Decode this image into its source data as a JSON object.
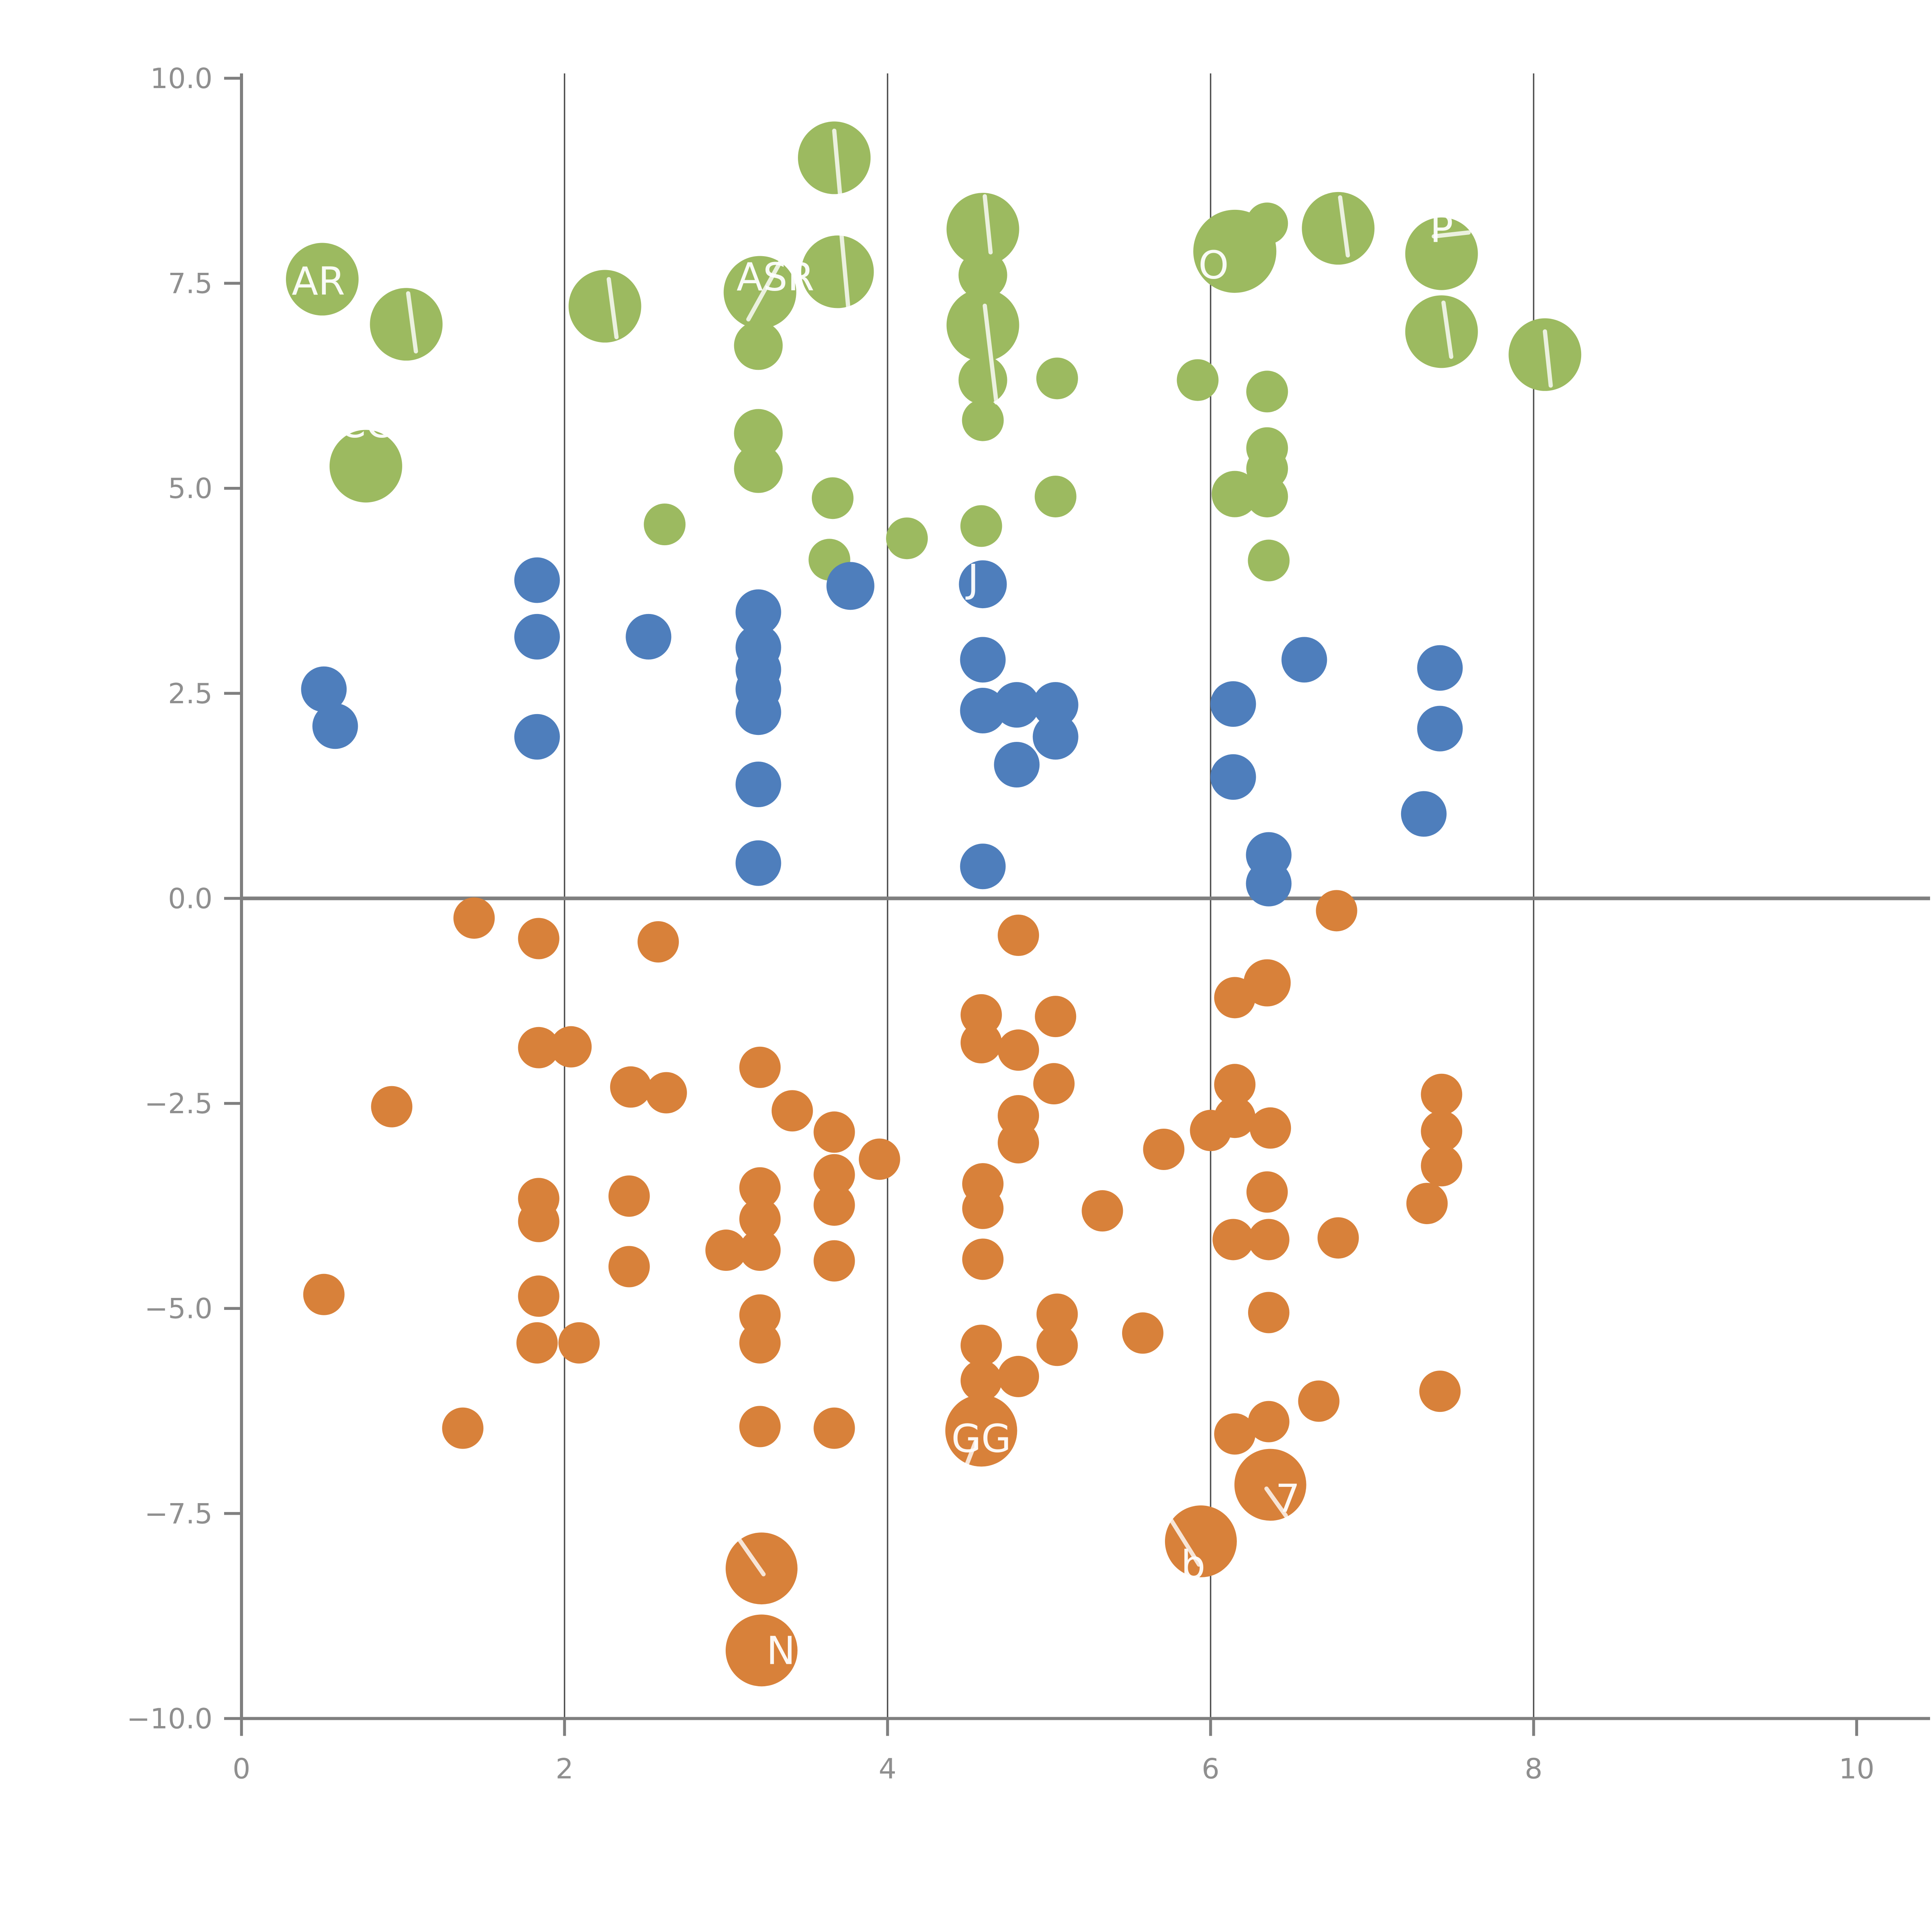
{
  "chart_data": {
    "type": "scatter",
    "title": "",
    "xlabel": "",
    "ylabel": "",
    "xlim": [
      0,
      10
    ],
    "ylim": [
      -10,
      10
    ],
    "grid": "vertical-only",
    "gridlines_x": [
      2,
      4,
      6,
      8
    ],
    "zero_line_y": 0,
    "x_ticks": [
      {
        "value": 0,
        "label": "0"
      },
      {
        "value": 2,
        "label": "2"
      },
      {
        "value": 4,
        "label": "4"
      },
      {
        "value": 6,
        "label": "6"
      },
      {
        "value": 8,
        "label": "8"
      },
      {
        "value": 10,
        "label": "10"
      }
    ],
    "y_ticks": [
      {
        "value": 10,
        "label": "10.0"
      },
      {
        "value": 7.5,
        "label": "7.5"
      },
      {
        "value": 5,
        "label": "5.0"
      },
      {
        "value": 2.5,
        "label": "2.5"
      },
      {
        "value": 0,
        "label": "0.0"
      },
      {
        "value": -2.5,
        "label": "−2.5"
      },
      {
        "value": -5,
        "label": "−5.0"
      },
      {
        "value": -7.5,
        "label": "−7.5"
      },
      {
        "value": -10,
        "label": "−10.0"
      }
    ],
    "point_label_color": "#ffffff",
    "series": [
      {
        "name": "green-cluster",
        "color": "#9CBA60",
        "points": [
          {
            "x": 0.5,
            "y": 7.55,
            "r": 18.8,
            "label": "AR",
            "lx": -2,
            "ly": 1
          },
          {
            "x": 1.02,
            "y": 7.0,
            "r": 18.8,
            "line": [
              1,
              -16,
              5,
              14
            ]
          },
          {
            "x": 0.77,
            "y": 5.27,
            "r": 18.8,
            "label": "CC",
            "lx": 0,
            "ly": -22
          },
          {
            "x": 2.25,
            "y": 7.22,
            "r": 18.8,
            "line": [
              2,
              -14,
              6,
              16
            ]
          },
          {
            "x": 3.67,
            "y": 9.03,
            "r": 18.8,
            "line": [
              0,
              -14,
              4,
              30
            ]
          },
          {
            "x": 3.21,
            "y": 7.39,
            "r": 18.8,
            "label": "ASR",
            "lx": 8,
            "ly": -8,
            "line": [
              14,
              -22,
              -6,
              14
            ]
          },
          {
            "x": 3.2,
            "y": 6.74,
            "r": 12.6
          },
          {
            "x": 3.69,
            "y": 7.64,
            "r": 18.8,
            "line": [
              2,
              -20,
              7,
              34
            ]
          },
          {
            "x": 4.59,
            "y": 8.16,
            "r": 18.8,
            "line": [
              1,
              -17,
              4,
              12
            ]
          },
          {
            "x": 4.59,
            "y": 7.6,
            "r": 12.6
          },
          {
            "x": 4.59,
            "y": 6.99,
            "r": 18.8,
            "line": [
              1,
              -10,
              7,
              40
            ]
          },
          {
            "x": 4.59,
            "y": 6.32,
            "r": 12.6
          },
          {
            "x": 4.59,
            "y": 5.83,
            "r": 10.8
          },
          {
            "x": 5.05,
            "y": 6.34,
            "r": 10.8
          },
          {
            "x": 3.2,
            "y": 5.67,
            "r": 12.6
          },
          {
            "x": 3.2,
            "y": 5.24,
            "r": 12.6
          },
          {
            "x": 3.66,
            "y": 4.88,
            "r": 10.8
          },
          {
            "x": 3.64,
            "y": 4.13,
            "r": 10.8
          },
          {
            "x": 2.62,
            "y": 4.56,
            "r": 10.8
          },
          {
            "x": 4.12,
            "y": 4.39,
            "r": 10.8
          },
          {
            "x": 4.58,
            "y": 4.54,
            "r": 10.8
          },
          {
            "x": 5.04,
            "y": 4.9,
            "r": 10.8
          },
          {
            "x": 6.35,
            "y": 8.23,
            "r": 10.8
          },
          {
            "x": 6.15,
            "y": 7.89,
            "r": 21.5,
            "label": "O",
            "lx": -11,
            "ly": 7
          },
          {
            "x": 6.79,
            "y": 8.17,
            "r": 18.8,
            "line": [
              1,
              -16,
              5,
              14
            ]
          },
          {
            "x": 7.43,
            "y": 7.86,
            "r": 18.8,
            "label": "P",
            "lx": 0,
            "ly": -13,
            "line": [
              -4,
              -9,
              14,
              -11
            ]
          },
          {
            "x": 7.43,
            "y": 6.91,
            "r": 18.8,
            "line": [
              1,
              -15,
              5,
              13
            ]
          },
          {
            "x": 8.07,
            "y": 6.63,
            "r": 18.8,
            "line": [
              0,
              -12,
              3,
              16
            ]
          },
          {
            "x": 5.92,
            "y": 6.32,
            "r": 10.8
          },
          {
            "x": 6.35,
            "y": 6.18,
            "r": 10.8
          },
          {
            "x": 6.35,
            "y": 5.49,
            "r": 10.8
          },
          {
            "x": 6.35,
            "y": 5.24,
            "r": 10.8
          },
          {
            "x": 6.15,
            "y": 4.93,
            "r": 12.0
          },
          {
            "x": 6.35,
            "y": 4.9,
            "r": 10.8
          },
          {
            "x": 6.36,
            "y": 4.12,
            "r": 10.8
          }
        ]
      },
      {
        "name": "blue-cluster",
        "color": "#4E7EBC",
        "points": [
          {
            "x": 0.51,
            "y": 2.55,
            "r": 11.8
          },
          {
            "x": 0.58,
            "y": 2.1,
            "r": 11.8
          },
          {
            "x": 1.83,
            "y": 3.88,
            "r": 11.8
          },
          {
            "x": 1.83,
            "y": 3.19,
            "r": 11.8
          },
          {
            "x": 1.83,
            "y": 1.97,
            "r": 11.8
          },
          {
            "x": 2.52,
            "y": 3.19,
            "r": 11.8
          },
          {
            "x": 3.2,
            "y": 3.49,
            "r": 11.8
          },
          {
            "x": 3.2,
            "y": 3.06,
            "r": 11.8
          },
          {
            "x": 3.2,
            "y": 2.79,
            "r": 11.8
          },
          {
            "x": 3.2,
            "y": 2.55,
            "r": 11.8
          },
          {
            "x": 3.2,
            "y": 2.27,
            "r": 11.8
          },
          {
            "x": 3.2,
            "y": 1.39,
            "r": 11.8
          },
          {
            "x": 3.2,
            "y": 0.43,
            "r": 11.8
          },
          {
            "x": 3.77,
            "y": 3.81,
            "r": 12.4
          },
          {
            "x": 4.59,
            "y": 3.83,
            "r": 12.4,
            "label": "J",
            "lx": -5,
            "ly": -3
          },
          {
            "x": 4.59,
            "y": 2.91,
            "r": 11.8
          },
          {
            "x": 4.59,
            "y": 2.29,
            "r": 11.8
          },
          {
            "x": 4.8,
            "y": 2.36,
            "r": 11.8
          },
          {
            "x": 5.04,
            "y": 2.36,
            "r": 11.8
          },
          {
            "x": 5.04,
            "y": 1.97,
            "r": 11.8
          },
          {
            "x": 4.8,
            "y": 1.63,
            "r": 11.8
          },
          {
            "x": 4.59,
            "y": 0.39,
            "r": 11.8
          },
          {
            "x": 6.14,
            "y": 2.37,
            "r": 11.8
          },
          {
            "x": 6.14,
            "y": 1.48,
            "r": 11.8
          },
          {
            "x": 6.58,
            "y": 2.91,
            "r": 11.8
          },
          {
            "x": 7.42,
            "y": 2.81,
            "r": 11.8
          },
          {
            "x": 7.42,
            "y": 2.07,
            "r": 11.8
          },
          {
            "x": 7.32,
            "y": 1.03,
            "r": 11.8
          },
          {
            "x": 6.36,
            "y": 0.53,
            "r": 11.8
          },
          {
            "x": 6.36,
            "y": 0.18,
            "r": 11.8
          }
        ]
      },
      {
        "name": "orange-cluster",
        "color": "#D8813A",
        "points": [
          {
            "x": 1.44,
            "y": -0.24,
            "r": 10.7
          },
          {
            "x": 1.84,
            "y": -0.49,
            "r": 10.7
          },
          {
            "x": 2.58,
            "y": -0.53,
            "r": 10.7
          },
          {
            "x": 4.81,
            "y": -0.45,
            "r": 10.7
          },
          {
            "x": 6.78,
            "y": -0.15,
            "r": 10.7
          },
          {
            "x": 0.93,
            "y": -2.54,
            "r": 10.7
          },
          {
            "x": 1.84,
            "y": -1.82,
            "r": 10.7
          },
          {
            "x": 2.04,
            "y": -1.81,
            "r": 10.7
          },
          {
            "x": 2.41,
            "y": -2.3,
            "r": 10.7
          },
          {
            "x": 2.63,
            "y": -2.37,
            "r": 10.7
          },
          {
            "x": 3.21,
            "y": -2.06,
            "r": 10.7
          },
          {
            "x": 3.41,
            "y": -2.59,
            "r": 10.7
          },
          {
            "x": 3.67,
            "y": -2.85,
            "r": 10.7
          },
          {
            "x": 3.95,
            "y": -3.18,
            "r": 10.7
          },
          {
            "x": 3.67,
            "y": -3.37,
            "r": 10.7
          },
          {
            "x": 3.67,
            "y": -3.74,
            "r": 10.7
          },
          {
            "x": 1.84,
            "y": -3.66,
            "r": 10.7
          },
          {
            "x": 1.84,
            "y": -3.94,
            "r": 10.7
          },
          {
            "x": 2.4,
            "y": -3.63,
            "r": 10.7
          },
          {
            "x": 2.4,
            "y": -4.49,
            "r": 10.7
          },
          {
            "x": 0.51,
            "y": -4.83,
            "r": 10.7
          },
          {
            "x": 1.84,
            "y": -4.85,
            "r": 10.7
          },
          {
            "x": 1.83,
            "y": -5.42,
            "r": 10.7
          },
          {
            "x": 2.09,
            "y": -5.42,
            "r": 10.7
          },
          {
            "x": 1.37,
            "y": -6.46,
            "r": 10.7
          },
          {
            "x": 3.21,
            "y": -3.53,
            "r": 10.7
          },
          {
            "x": 3.21,
            "y": -3.91,
            "r": 10.7
          },
          {
            "x": 3.21,
            "y": -4.29,
            "r": 10.7
          },
          {
            "x": 3.0,
            "y": -4.29,
            "r": 10.7
          },
          {
            "x": 3.67,
            "y": -4.42,
            "r": 10.7
          },
          {
            "x": 4.58,
            "y": -1.42,
            "r": 10.7
          },
          {
            "x": 4.58,
            "y": -1.76,
            "r": 10.7
          },
          {
            "x": 4.81,
            "y": -1.85,
            "r": 10.7
          },
          {
            "x": 5.04,
            "y": -1.44,
            "r": 10.7
          },
          {
            "x": 5.03,
            "y": -2.26,
            "r": 10.7
          },
          {
            "x": 4.81,
            "y": -2.65,
            "r": 10.7
          },
          {
            "x": 4.81,
            "y": -2.98,
            "r": 10.7
          },
          {
            "x": 4.59,
            "y": -3.48,
            "r": 10.7
          },
          {
            "x": 4.59,
            "y": -3.78,
            "r": 10.7
          },
          {
            "x": 4.59,
            "y": -4.4,
            "r": 10.7
          },
          {
            "x": 5.33,
            "y": -3.81,
            "r": 10.7
          },
          {
            "x": 5.71,
            "y": -3.06,
            "r": 10.7
          },
          {
            "x": 6.0,
            "y": -2.83,
            "r": 10.7
          },
          {
            "x": 6.15,
            "y": -2.27,
            "r": 10.7
          },
          {
            "x": 6.15,
            "y": -2.67,
            "r": 10.7
          },
          {
            "x": 6.37,
            "y": -2.8,
            "r": 10.7
          },
          {
            "x": 6.15,
            "y": -1.21,
            "r": 10.7
          },
          {
            "x": 6.35,
            "y": -1.03,
            "r": 12.2
          },
          {
            "x": 6.35,
            "y": -3.58,
            "r": 10.7
          },
          {
            "x": 6.14,
            "y": -4.16,
            "r": 10.7
          },
          {
            "x": 6.36,
            "y": -4.16,
            "r": 10.7
          },
          {
            "x": 6.79,
            "y": -4.14,
            "r": 10.7
          },
          {
            "x": 7.43,
            "y": -2.39,
            "r": 10.7
          },
          {
            "x": 7.43,
            "y": -2.84,
            "r": 10.7
          },
          {
            "x": 7.43,
            "y": -3.26,
            "r": 10.7
          },
          {
            "x": 7.34,
            "y": -3.72,
            "r": 10.7
          },
          {
            "x": 7.42,
            "y": -6.01,
            "r": 10.7
          },
          {
            "x": 3.21,
            "y": -5.08,
            "r": 10.7
          },
          {
            "x": 3.21,
            "y": -5.42,
            "r": 10.7
          },
          {
            "x": 3.21,
            "y": -6.44,
            "r": 10.7
          },
          {
            "x": 3.67,
            "y": -6.46,
            "r": 10.7
          },
          {
            "x": 4.58,
            "y": -5.45,
            "r": 10.7
          },
          {
            "x": 4.58,
            "y": -5.88,
            "r": 10.7
          },
          {
            "x": 4.81,
            "y": -5.83,
            "r": 10.7
          },
          {
            "x": 5.05,
            "y": -5.07,
            "r": 10.7
          },
          {
            "x": 5.05,
            "y": -5.45,
            "r": 10.7
          },
          {
            "x": 5.58,
            "y": -5.3,
            "r": 10.7
          },
          {
            "x": 4.58,
            "y": -6.49,
            "r": 18.6,
            "label": "GG",
            "lx": 0,
            "ly": 4,
            "line": [
              -10,
              24,
              -3,
              6
            ]
          },
          {
            "x": 6.36,
            "y": -5.05,
            "r": 10.7
          },
          {
            "x": 6.15,
            "y": -6.53,
            "r": 10.7
          },
          {
            "x": 6.36,
            "y": -6.38,
            "r": 10.7
          },
          {
            "x": 6.67,
            "y": -6.13,
            "r": 10.7
          },
          {
            "x": 6.37,
            "y": -7.15,
            "r": 18.6,
            "label": "7",
            "lx": 9,
            "ly": 7,
            "line": [
              -2,
              2,
              8,
              16
            ]
          },
          {
            "x": 5.94,
            "y": -7.84,
            "r": 18.6,
            "label": "b",
            "lx": -4,
            "ly": 12,
            "line": [
              -16,
              -12,
              -1,
              12
            ]
          },
          {
            "x": 3.22,
            "y": -8.17,
            "r": 18.6,
            "line": [
              -13,
              -17,
              1,
              3
            ]
          },
          {
            "x": 3.22,
            "y": -9.17,
            "r": 18.6,
            "label": "N",
            "lx": 10,
            "ly": 0
          }
        ]
      }
    ]
  },
  "axes_style": {
    "spine_color": "#7f7f7f",
    "tick_color": "#7f7f7f",
    "tick_label_color": "#8f8f8f",
    "grid_color": "#4a4a4a",
    "zero_line_color": "#7f7f7f",
    "background": "#ffffff"
  }
}
